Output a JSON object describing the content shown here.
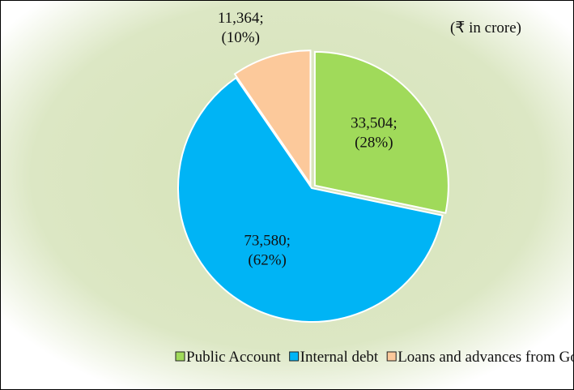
{
  "chart_data": {
    "type": "pie",
    "annotation": "(₹ in crore)",
    "categories": [
      "Public Account",
      "Internal debt",
      "Loans and advances from GoI"
    ],
    "values": [
      33504,
      73580,
      11364
    ],
    "value_labels": [
      [
        "33,504;",
        "(28%)"
      ],
      [
        "73,580;",
        "(62%)"
      ],
      [
        "11,364;",
        "(10%)"
      ]
    ],
    "colors": [
      "#a0da5a",
      "#00b4f5",
      "#fcc99b"
    ],
    "legend": "bottom"
  }
}
